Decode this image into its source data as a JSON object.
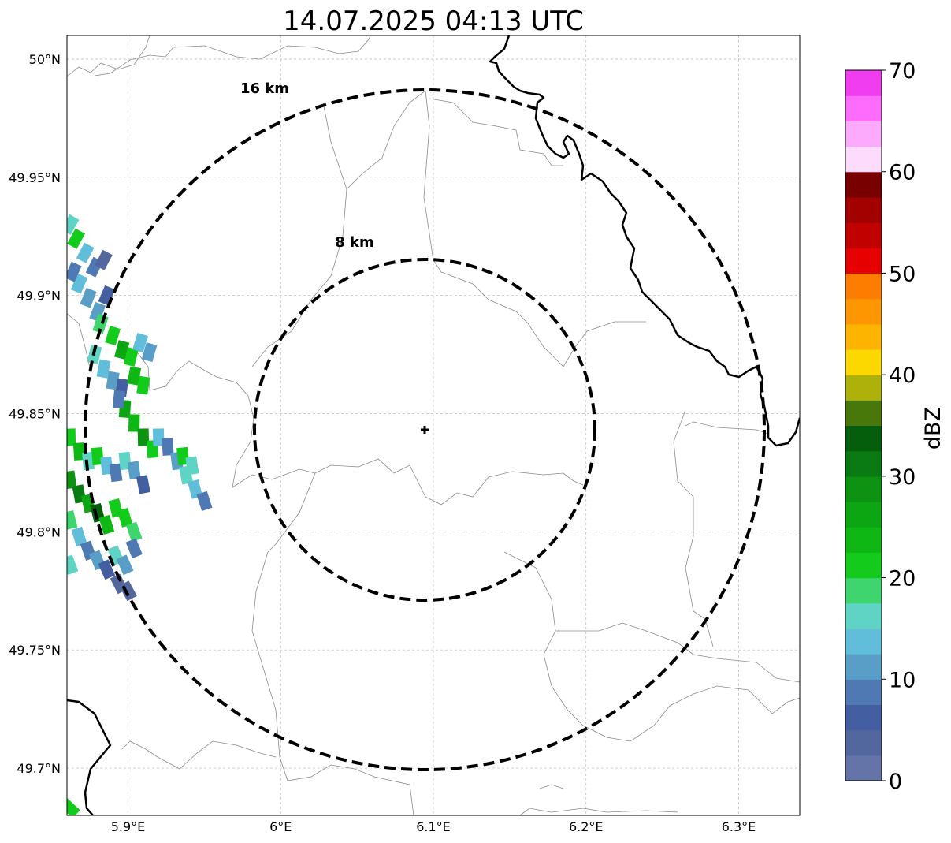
{
  "title": "14.07.2025 04:13 UTC",
  "map": {
    "lon_range": [
      5.86,
      6.34
    ],
    "lat_range": [
      49.68,
      50.01
    ],
    "x_ticks": [
      {
        "value": 5.9,
        "label": "5.9°E"
      },
      {
        "value": 6.0,
        "label": "6°E"
      },
      {
        "value": 6.1,
        "label": "6.1°E"
      },
      {
        "value": 6.2,
        "label": "6.2°E"
      },
      {
        "value": 6.3,
        "label": "6.3°E"
      }
    ],
    "y_ticks": [
      {
        "value": 50.0,
        "label": "50°N"
      },
      {
        "value": 49.95,
        "label": "49.95°N"
      },
      {
        "value": 49.9,
        "label": "49.9°N"
      },
      {
        "value": 49.85,
        "label": "49.85°N"
      },
      {
        "value": 49.8,
        "label": "49.8°N"
      },
      {
        "value": 49.75,
        "label": "49.75°N"
      },
      {
        "value": 49.7,
        "label": "49.7°N"
      }
    ],
    "gridlines": true,
    "radar_site": {
      "lon": 6.094,
      "lat": 49.843
    },
    "range_rings": [
      {
        "label": "8 km",
        "range_km": 8
      },
      {
        "label": "16 km",
        "range_km": 16
      }
    ]
  },
  "colorbar": {
    "label": "dBZ",
    "min": 0,
    "max": 70,
    "step": 2.5,
    "ticks": [
      "0",
      "10",
      "20",
      "30",
      "40",
      "50",
      "60",
      "70"
    ],
    "colors": [
      "#6474a8",
      "#53679f",
      "#435fa2",
      "#4e79b2",
      "#589ec7",
      "#61bedb",
      "#5fd4c4",
      "#3ed56e",
      "#12cb1a",
      "#0fb714",
      "#0da613",
      "#0d9212",
      "#0a7a12",
      "#055e0c",
      "#477809",
      "#adb10a",
      "#fdd700",
      "#fdb400",
      "#fd9600",
      "#fd7d00",
      "#e60000",
      "#c10000",
      "#a30000",
      "#780000",
      "#fcdbfc",
      "#fcaafc",
      "#fd6cfd",
      "#f03df0"
    ]
  },
  "echoes": [
    {
      "lon": 5.862,
      "lat": 49.93,
      "dbz": 16
    },
    {
      "lon": 5.866,
      "lat": 49.924,
      "dbz": 22
    },
    {
      "lon": 5.872,
      "lat": 49.918,
      "dbz": 13
    },
    {
      "lon": 5.878,
      "lat": 49.912,
      "dbz": 8
    },
    {
      "lon": 5.884,
      "lat": 49.915,
      "dbz": 4
    },
    {
      "lon": 5.868,
      "lat": 49.905,
      "dbz": 14
    },
    {
      "lon": 5.874,
      "lat": 49.899,
      "dbz": 12
    },
    {
      "lon": 5.88,
      "lat": 49.893,
      "dbz": 10
    },
    {
      "lon": 5.886,
      "lat": 49.9,
      "dbz": 6
    },
    {
      "lon": 5.864,
      "lat": 49.91,
      "dbz": 9
    },
    {
      "lon": 5.882,
      "lat": 49.888,
      "dbz": 18
    },
    {
      "lon": 5.89,
      "lat": 49.883,
      "dbz": 22
    },
    {
      "lon": 5.896,
      "lat": 49.877,
      "dbz": 25
    },
    {
      "lon": 5.902,
      "lat": 49.874,
      "dbz": 20
    },
    {
      "lon": 5.908,
      "lat": 49.88,
      "dbz": 14
    },
    {
      "lon": 5.914,
      "lat": 49.876,
      "dbz": 12
    },
    {
      "lon": 5.878,
      "lat": 49.875,
      "dbz": 17
    },
    {
      "lon": 5.884,
      "lat": 49.869,
      "dbz": 13
    },
    {
      "lon": 5.89,
      "lat": 49.864,
      "dbz": 10
    },
    {
      "lon": 5.896,
      "lat": 49.861,
      "dbz": 6
    },
    {
      "lon": 5.904,
      "lat": 49.866,
      "dbz": 23
    },
    {
      "lon": 5.91,
      "lat": 49.862,
      "dbz": 21
    },
    {
      "lon": 5.898,
      "lat": 49.852,
      "dbz": 27
    },
    {
      "lon": 5.904,
      "lat": 49.846,
      "dbz": 24
    },
    {
      "lon": 5.91,
      "lat": 49.84,
      "dbz": 29
    },
    {
      "lon": 5.916,
      "lat": 49.835,
      "dbz": 22
    },
    {
      "lon": 5.894,
      "lat": 49.856,
      "dbz": 8
    },
    {
      "lon": 5.92,
      "lat": 49.84,
      "dbz": 14
    },
    {
      "lon": 5.926,
      "lat": 49.836,
      "dbz": 8
    },
    {
      "lon": 5.932,
      "lat": 49.83,
      "dbz": 12
    },
    {
      "lon": 5.938,
      "lat": 49.824,
      "dbz": 17
    },
    {
      "lon": 5.944,
      "lat": 49.818,
      "dbz": 14
    },
    {
      "lon": 5.95,
      "lat": 49.813,
      "dbz": 8
    },
    {
      "lon": 5.936,
      "lat": 49.832,
      "dbz": 21
    },
    {
      "lon": 5.942,
      "lat": 49.828,
      "dbz": 16
    },
    {
      "lon": 5.862,
      "lat": 49.84,
      "dbz": 20
    },
    {
      "lon": 5.868,
      "lat": 49.834,
      "dbz": 24
    },
    {
      "lon": 5.874,
      "lat": 49.83,
      "dbz": 17
    },
    {
      "lon": 5.88,
      "lat": 49.832,
      "dbz": 22
    },
    {
      "lon": 5.886,
      "lat": 49.828,
      "dbz": 13
    },
    {
      "lon": 5.892,
      "lat": 49.825,
      "dbz": 9
    },
    {
      "lon": 5.898,
      "lat": 49.83,
      "dbz": 16
    },
    {
      "lon": 5.904,
      "lat": 49.826,
      "dbz": 12
    },
    {
      "lon": 5.91,
      "lat": 49.82,
      "dbz": 6
    },
    {
      "lon": 5.862,
      "lat": 49.822,
      "dbz": 28
    },
    {
      "lon": 5.868,
      "lat": 49.816,
      "dbz": 31
    },
    {
      "lon": 5.874,
      "lat": 49.812,
      "dbz": 26
    },
    {
      "lon": 5.88,
      "lat": 49.808,
      "dbz": 33
    },
    {
      "lon": 5.886,
      "lat": 49.803,
      "dbz": 24
    },
    {
      "lon": 5.892,
      "lat": 49.81,
      "dbz": 20
    },
    {
      "lon": 5.898,
      "lat": 49.806,
      "dbz": 22
    },
    {
      "lon": 5.904,
      "lat": 49.8,
      "dbz": 18
    },
    {
      "lon": 5.862,
      "lat": 49.805,
      "dbz": 18
    },
    {
      "lon": 5.868,
      "lat": 49.798,
      "dbz": 13
    },
    {
      "lon": 5.874,
      "lat": 49.792,
      "dbz": 9
    },
    {
      "lon": 5.88,
      "lat": 49.788,
      "dbz": 11
    },
    {
      "lon": 5.886,
      "lat": 49.784,
      "dbz": 7
    },
    {
      "lon": 5.892,
      "lat": 49.79,
      "dbz": 15
    },
    {
      "lon": 5.898,
      "lat": 49.786,
      "dbz": 12
    },
    {
      "lon": 5.904,
      "lat": 49.793,
      "dbz": 8
    },
    {
      "lon": 5.894,
      "lat": 49.778,
      "dbz": 3
    },
    {
      "lon": 5.9,
      "lat": 49.775,
      "dbz": 4
    },
    {
      "lon": 5.862,
      "lat": 49.786,
      "dbz": 15
    },
    {
      "lon": 5.862,
      "lat": 49.683,
      "dbz": 22
    }
  ]
}
